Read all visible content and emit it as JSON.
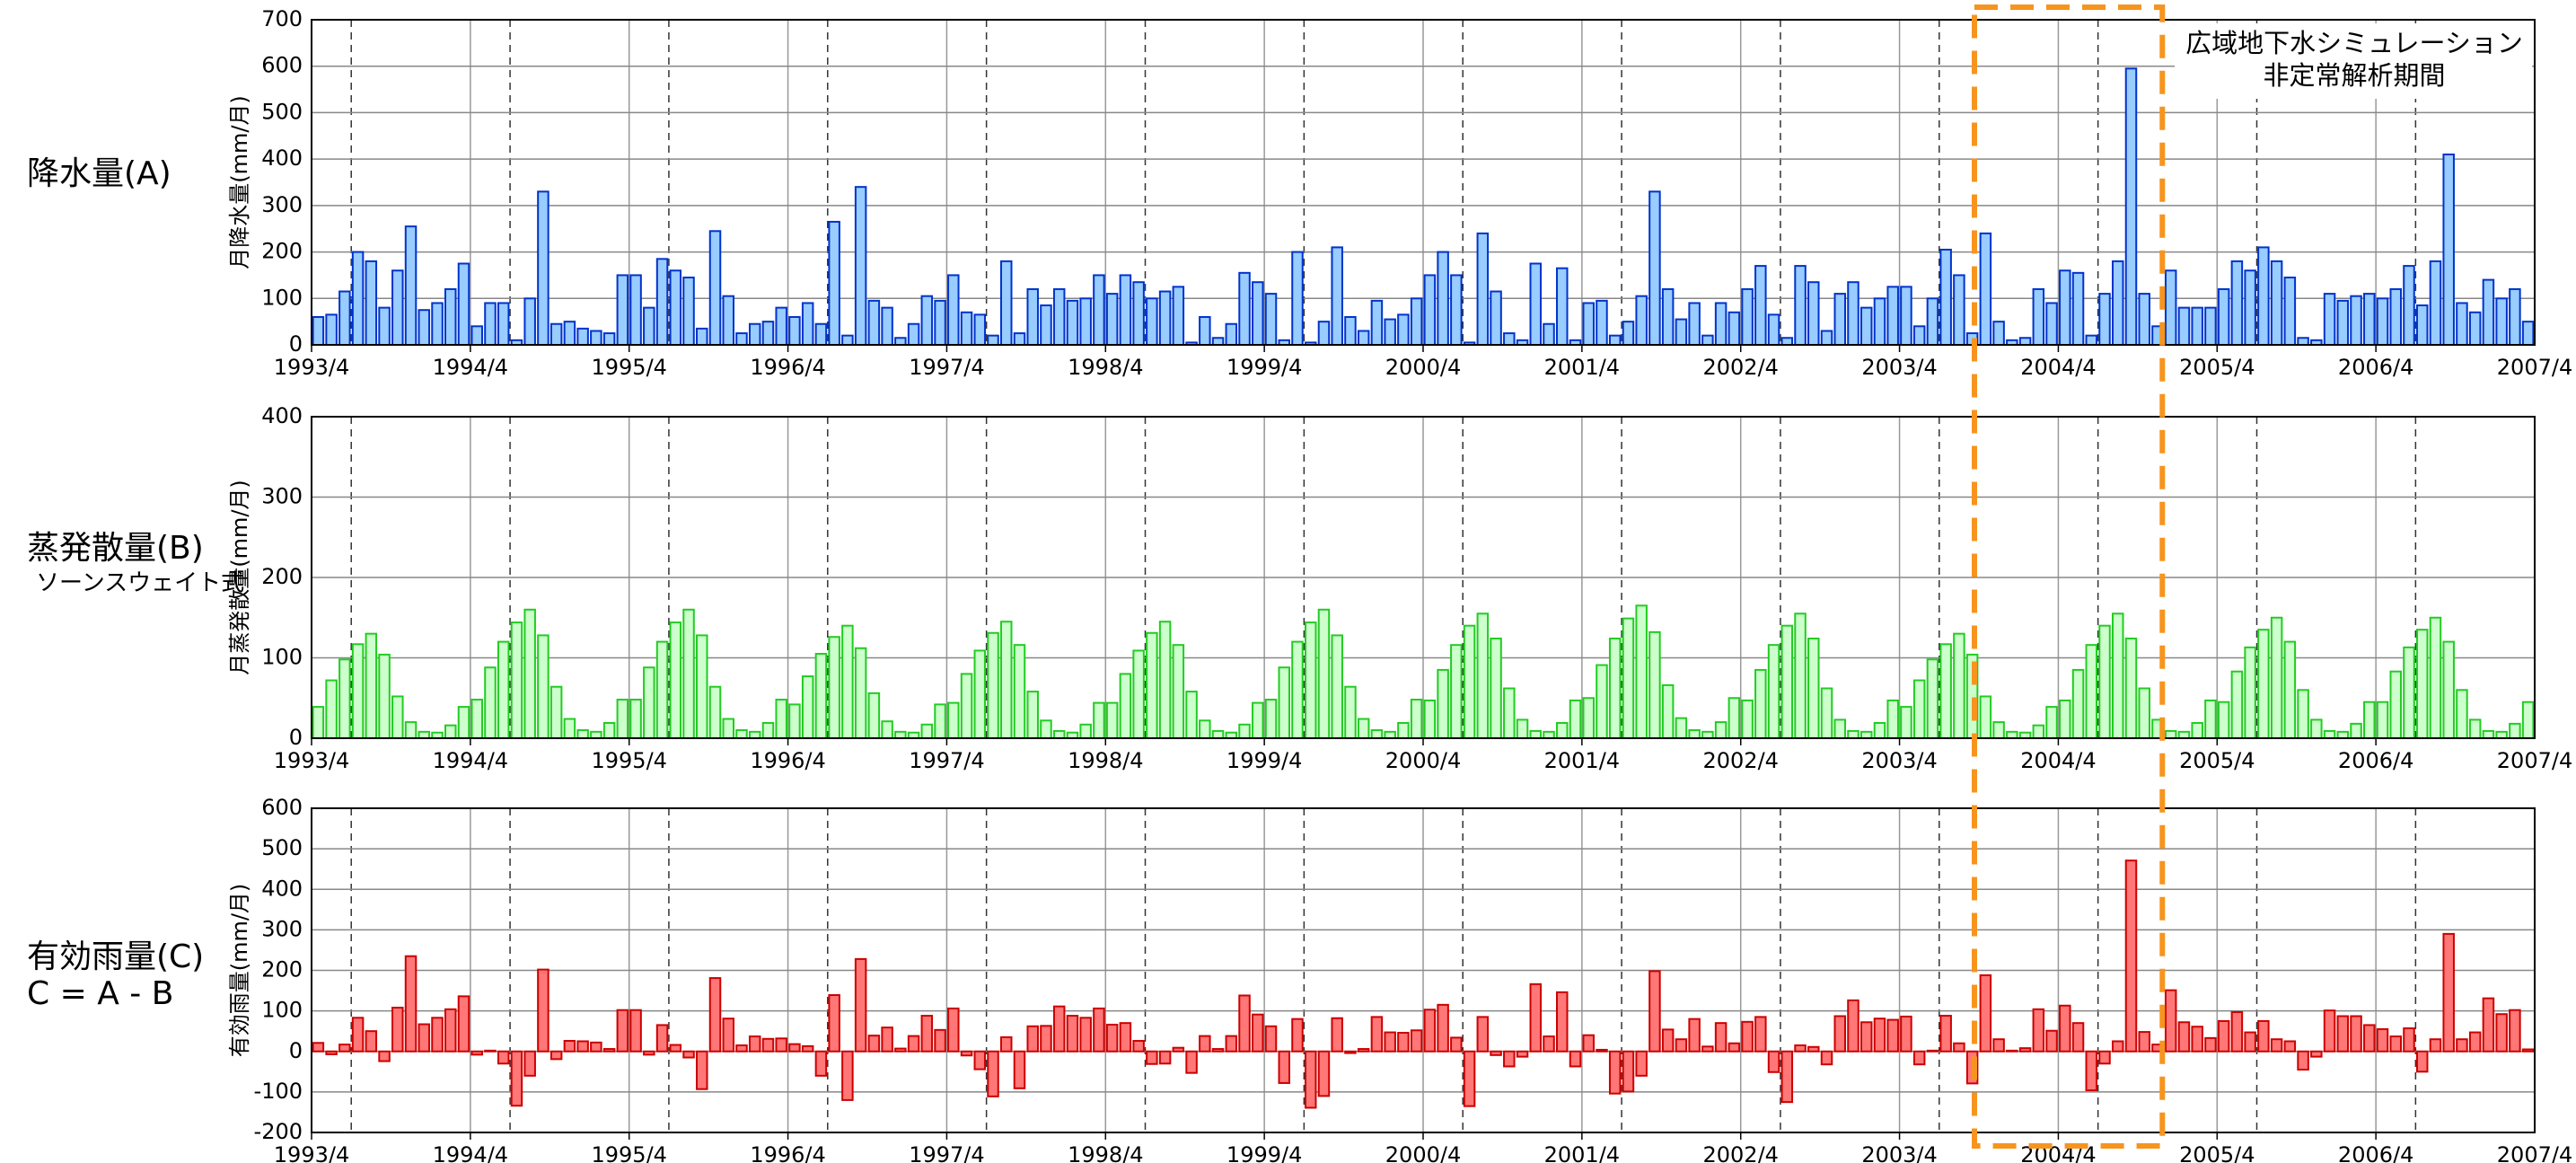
{
  "chart_data": [
    {
      "type": "bar",
      "title": "降水量(A)",
      "ylabel": "月降水量(mm/月)",
      "annotation": [
        "広域地下水シミュレーション",
        "非定常解析期間"
      ],
      "categories": [
        "1993/4",
        null,
        null,
        null,
        null,
        null,
        null,
        null,
        null,
        null,
        null,
        null,
        "1994/4",
        null,
        null,
        null,
        null,
        null,
        null,
        null,
        null,
        null,
        null,
        null,
        "1995/4",
        null,
        null,
        null,
        null,
        null,
        null,
        null,
        null,
        null,
        null,
        null,
        "1996/4",
        null,
        null,
        null,
        null,
        null,
        null,
        null,
        null,
        null,
        null,
        null,
        "1997/4",
        null,
        null,
        null,
        null,
        null,
        null,
        null,
        null,
        null,
        null,
        null,
        "1998/4",
        null,
        null,
        null,
        null,
        null,
        null,
        null,
        null,
        null,
        null,
        null,
        "1999/4",
        null,
        null,
        null,
        null,
        null,
        null,
        null,
        null,
        null,
        null,
        null,
        "2000/4",
        null,
        null,
        null,
        null,
        null,
        null,
        null,
        null,
        null,
        null,
        null,
        "2001/4",
        null,
        null,
        null,
        null,
        null,
        null,
        null,
        null,
        null,
        null,
        null,
        "2002/4",
        null,
        null,
        null,
        null,
        null,
        null,
        null,
        null,
        null,
        null,
        null,
        "2003/4",
        null,
        null,
        null,
        null,
        null,
        null,
        null,
        null,
        null,
        null,
        null,
        "2004/4",
        null,
        null,
        null,
        null,
        null,
        null,
        null,
        null,
        null,
        null,
        null,
        "2005/4",
        null,
        null,
        null,
        null,
        null,
        null,
        null,
        null,
        null,
        null,
        null,
        "2006/4",
        null,
        null,
        null,
        null,
        null,
        null,
        null,
        null,
        null,
        null,
        null
      ],
      "x_end_label": "2007/4",
      "values": [
        60,
        65,
        115,
        200,
        180,
        80,
        160,
        255,
        75,
        90,
        120,
        175,
        40,
        90,
        90,
        10,
        100,
        330,
        45,
        50,
        35,
        30,
        25,
        150,
        150,
        80,
        185,
        160,
        145,
        35,
        245,
        105,
        25,
        45,
        50,
        80,
        60,
        90,
        45,
        265,
        20,
        340,
        95,
        80,
        15,
        45,
        105,
        95,
        150,
        70,
        65,
        20,
        180,
        25,
        120,
        85,
        120,
        95,
        100,
        150,
        110,
        150,
        135,
        100,
        115,
        125,
        5,
        60,
        15,
        45,
        155,
        135,
        110,
        10,
        200,
        5,
        50,
        210,
        60,
        30,
        95,
        55,
        65,
        100,
        150,
        200,
        150,
        5,
        240,
        115,
        25,
        10,
        175,
        45,
        165,
        10,
        90,
        95,
        20,
        50,
        105,
        330,
        120,
        55,
        90,
        20,
        90,
        70,
        120,
        170,
        65,
        15,
        170,
        135,
        30,
        110,
        135,
        80,
        100,
        125,
        125,
        40,
        100,
        205,
        150,
        25,
        240,
        50,
        10,
        15,
        120,
        90,
        160,
        155,
        20,
        110,
        180,
        595,
        110,
        40,
        160,
        80,
        80,
        80,
        120,
        180,
        160,
        210,
        180,
        145,
        15,
        10,
        110,
        95,
        105,
        110,
        100,
        120,
        170,
        85,
        180,
        410,
        90,
        70,
        140,
        100,
        120,
        50
      ],
      "color": "#99ccff",
      "edge_color": "#0033cc",
      "ylim": [
        0,
        700
      ],
      "yticks": [
        0,
        100,
        200,
        300,
        400,
        500,
        600,
        700
      ],
      "grid": true
    },
    {
      "type": "bar",
      "title": "蒸発散量(B)",
      "subtitle": "ソーンスウェイト式",
      "ylabel": "月蒸発散量(mm/月)",
      "categories": [
        "1993/4",
        null,
        null,
        null,
        null,
        null,
        null,
        null,
        null,
        null,
        null,
        null,
        "1994/4",
        null,
        null,
        null,
        null,
        null,
        null,
        null,
        null,
        null,
        null,
        null,
        "1995/4",
        null,
        null,
        null,
        null,
        null,
        null,
        null,
        null,
        null,
        null,
        null,
        "1996/4",
        null,
        null,
        null,
        null,
        null,
        null,
        null,
        null,
        null,
        null,
        null,
        "1997/4",
        null,
        null,
        null,
        null,
        null,
        null,
        null,
        null,
        null,
        null,
        null,
        "1998/4",
        null,
        null,
        null,
        null,
        null,
        null,
        null,
        null,
        null,
        null,
        null,
        "1999/4",
        null,
        null,
        null,
        null,
        null,
        null,
        null,
        null,
        null,
        null,
        null,
        "2000/4",
        null,
        null,
        null,
        null,
        null,
        null,
        null,
        null,
        null,
        null,
        null,
        "2001/4",
        null,
        null,
        null,
        null,
        null,
        null,
        null,
        null,
        null,
        null,
        null,
        "2002/4",
        null,
        null,
        null,
        null,
        null,
        null,
        null,
        null,
        null,
        null,
        null,
        "2003/4",
        null,
        null,
        null,
        null,
        null,
        null,
        null,
        null,
        null,
        null,
        null,
        "2004/4",
        null,
        null,
        null,
        null,
        null,
        null,
        null,
        null,
        null,
        null,
        null,
        "2005/4",
        null,
        null,
        null,
        null,
        null,
        null,
        null,
        null,
        null,
        null,
        null,
        "2006/4",
        null,
        null,
        null,
        null,
        null,
        null,
        null,
        null,
        null,
        null,
        null
      ],
      "x_end_label": "2007/4",
      "values": [
        39,
        72,
        98,
        117,
        130,
        104,
        52,
        20,
        8,
        7,
        16,
        39,
        48,
        88,
        120,
        144,
        160,
        128,
        64,
        24,
        10,
        8,
        19,
        48,
        48,
        88,
        120,
        144,
        160,
        128,
        64,
        24,
        10,
        8,
        19,
        48,
        42,
        77,
        105,
        126,
        140,
        112,
        56,
        21,
        8,
        7,
        17,
        42,
        44,
        80,
        109,
        131,
        145,
        116,
        58,
        22,
        9,
        7,
        17,
        44,
        44,
        80,
        109,
        131,
        145,
        116,
        58,
        22,
        9,
        7,
        17,
        44,
        48,
        88,
        120,
        144,
        160,
        128,
        64,
        24,
        10,
        8,
        19,
        48,
        47,
        85,
        116,
        140,
        155,
        124,
        62,
        23,
        9,
        8,
        19,
        47,
        50,
        91,
        124,
        149,
        165,
        132,
        66,
        25,
        10,
        8,
        20,
        50,
        47,
        85,
        116,
        140,
        155,
        124,
        62,
        23,
        9,
        8,
        19,
        47,
        39,
        72,
        98,
        117,
        130,
        104,
        52,
        20,
        8,
        7,
        16,
        39,
        47,
        85,
        116,
        140,
        155,
        124,
        62,
        23,
        9,
        8,
        19,
        47,
        45,
        83,
        113,
        135,
        150,
        120,
        60,
        23,
        9,
        8,
        18,
        45,
        45,
        83,
        113,
        135,
        150,
        120,
        60,
        23,
        9,
        8,
        18,
        45
      ],
      "color": "#ccffcc",
      "edge_color": "#22cc22",
      "ylim": [
        0,
        400
      ],
      "yticks": [
        0,
        100,
        200,
        300,
        400
      ],
      "grid": true
    },
    {
      "type": "bar",
      "title": "有効雨量(C)",
      "subtitle": "C = A - B",
      "ylabel": "有効雨量(mm/月)",
      "categories": [
        "1993/4",
        null,
        null,
        null,
        null,
        null,
        null,
        null,
        null,
        null,
        null,
        null,
        "1994/4",
        null,
        null,
        null,
        null,
        null,
        null,
        null,
        null,
        null,
        null,
        null,
        "1995/4",
        null,
        null,
        null,
        null,
        null,
        null,
        null,
        null,
        null,
        null,
        null,
        "1996/4",
        null,
        null,
        null,
        null,
        null,
        null,
        null,
        null,
        null,
        null,
        null,
        "1997/4",
        null,
        null,
        null,
        null,
        null,
        null,
        null,
        null,
        null,
        null,
        null,
        "1998/4",
        null,
        null,
        null,
        null,
        null,
        null,
        null,
        null,
        null,
        null,
        null,
        "1999/4",
        null,
        null,
        null,
        null,
        null,
        null,
        null,
        null,
        null,
        null,
        null,
        "2000/4",
        null,
        null,
        null,
        null,
        null,
        null,
        null,
        null,
        null,
        null,
        null,
        "2001/4",
        null,
        null,
        null,
        null,
        null,
        null,
        null,
        null,
        null,
        null,
        null,
        "2002/4",
        null,
        null,
        null,
        null,
        null,
        null,
        null,
        null,
        null,
        null,
        null,
        "2003/4",
        null,
        null,
        null,
        null,
        null,
        null,
        null,
        null,
        null,
        null,
        null,
        "2004/4",
        null,
        null,
        null,
        null,
        null,
        null,
        null,
        null,
        null,
        null,
        null,
        "2005/4",
        null,
        null,
        null,
        null,
        null,
        null,
        null,
        null,
        null,
        null,
        null,
        "2006/4",
        null,
        null,
        null,
        null,
        null,
        null,
        null,
        null,
        null,
        null,
        null
      ],
      "x_end_label": "2007/4",
      "values": [
        21,
        -7,
        17,
        83,
        50,
        -24,
        108,
        235,
        67,
        83,
        104,
        136,
        -8,
        2,
        -30,
        -134,
        -60,
        202,
        -19,
        26,
        25,
        22,
        6,
        102,
        102,
        -8,
        65,
        16,
        -15,
        -93,
        181,
        81,
        15,
        37,
        31,
        32,
        18,
        13,
        -60,
        139,
        -120,
        228,
        39,
        59,
        7,
        38,
        88,
        53,
        106,
        -10,
        -44,
        -111,
        35,
        -91,
        62,
        63,
        111,
        88,
        83,
        106,
        66,
        70,
        26,
        -31,
        -30,
        9,
        -53,
        38,
        6,
        38,
        138,
        91,
        62,
        -78,
        80,
        -139,
        -110,
        82,
        -4,
        6,
        85,
        47,
        46,
        52,
        103,
        115,
        34,
        -135,
        85,
        -9,
        -37,
        -13,
        166,
        37,
        146,
        -37,
        40,
        4,
        -104,
        -99,
        -60,
        198,
        54,
        30,
        80,
        12,
        70,
        20,
        73,
        85,
        -51,
        -125,
        15,
        11,
        -32,
        87,
        126,
        72,
        81,
        78,
        86,
        -32,
        2,
        88,
        20,
        -79,
        188,
        30,
        2,
        8,
        104,
        51,
        113,
        70,
        -96,
        -30,
        25,
        471,
        48,
        17,
        151,
        72,
        61,
        33,
        75,
        97,
        47,
        75,
        30,
        25,
        -45,
        -13,
        101,
        87,
        87,
        65,
        55,
        37,
        57,
        -50,
        30,
        290,
        30,
        47,
        131,
        92,
        102,
        5
      ],
      "color": "#ff7777",
      "edge_color": "#cc0000",
      "ylim": [
        -200,
        600
      ],
      "yticks": [
        -200,
        -100,
        0,
        100,
        200,
        300,
        400,
        500,
        600
      ],
      "grid": true
    }
  ]
}
